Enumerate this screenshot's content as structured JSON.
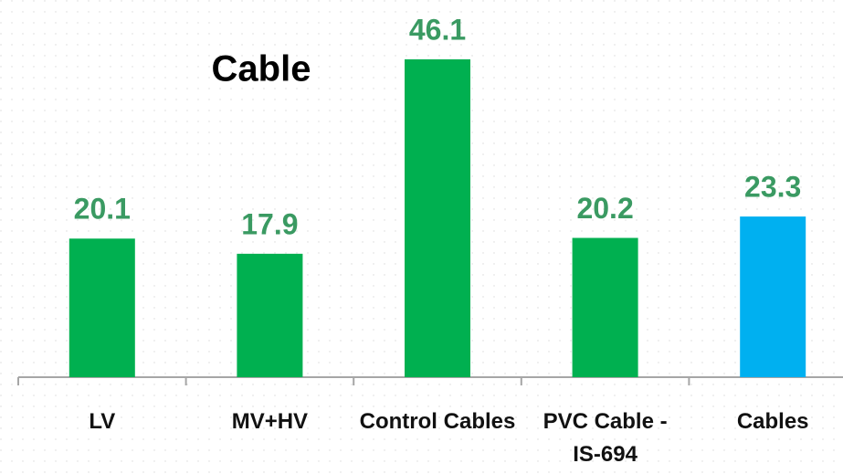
{
  "chart_data": {
    "type": "bar",
    "title": "Cable",
    "categories": [
      "LV",
      "MV+HV",
      "Control Cables",
      "PVC Cable - IS-694",
      "Cables"
    ],
    "values": [
      20.1,
      17.9,
      46.1,
      20.2,
      23.3
    ],
    "colors": [
      "#00b050",
      "#00b050",
      "#00b050",
      "#00b050",
      "#00b0f0"
    ],
    "label_color": "#3a9a62",
    "grid": false
  }
}
